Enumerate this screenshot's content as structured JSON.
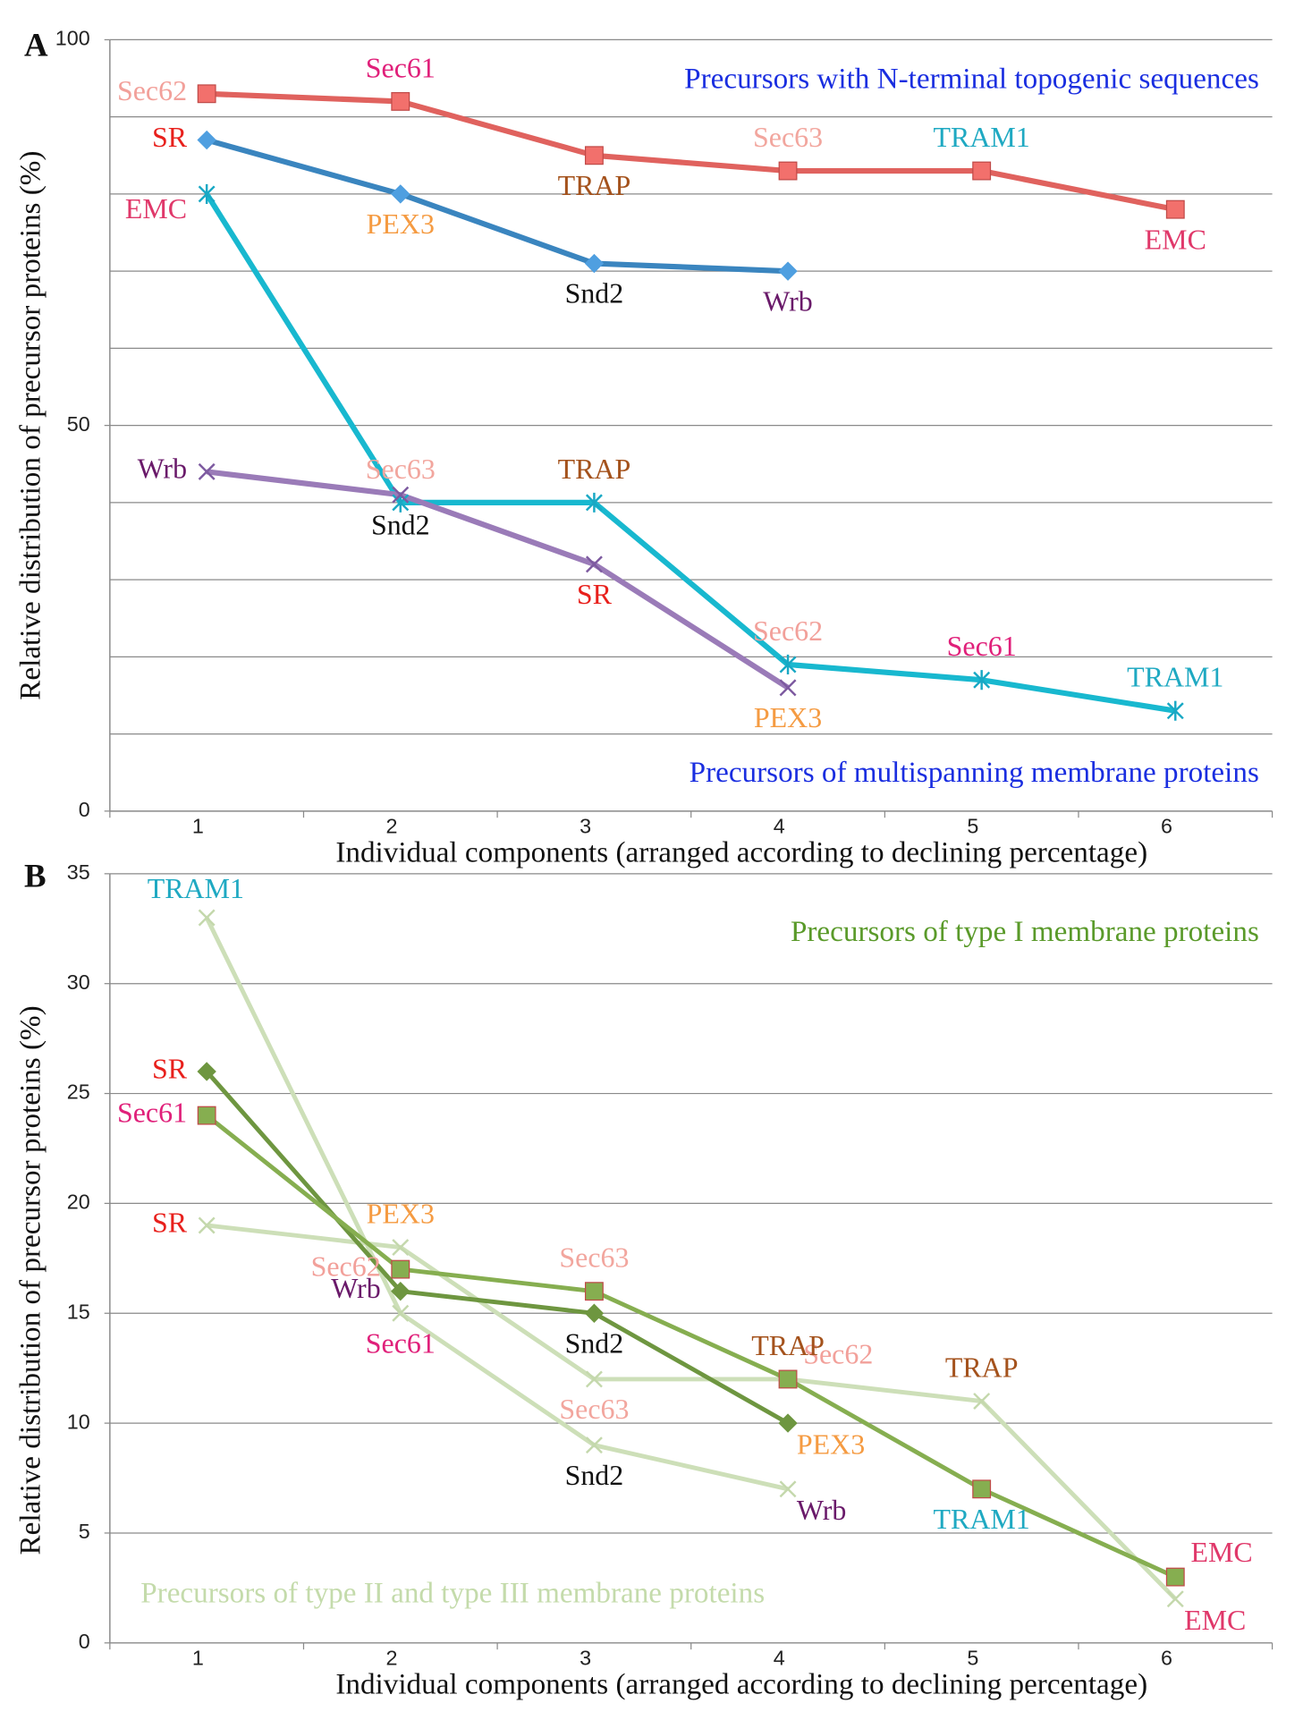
{
  "chart_data": [
    {
      "type": "line",
      "panel_label": "A",
      "ylabel": "Relative distribution of precursor proteins (%)",
      "xlabel": "Individual components (arranged according to declining percentage)",
      "categories": [
        "1",
        "2",
        "3",
        "4",
        "5",
        "6"
      ],
      "ylim": [
        0,
        100
      ],
      "yticks": [
        0,
        50,
        100
      ],
      "ygrid": [
        10,
        20,
        30,
        40,
        50,
        60,
        70,
        80,
        90,
        100
      ],
      "annotations": [
        {
          "text": "Precursors with N-terminal topogenic sequences",
          "color": "#1a2ee0",
          "corner": "top"
        },
        {
          "text": "Precursors of multispanning membrane proteins",
          "color": "#1a2ee0",
          "corner": "bottom"
        }
      ],
      "label_colors": {
        "Sec62": "#f2a09a",
        "Sec61": "#e0207a",
        "TRAP": "#a4521c",
        "Sec63": "#f2a69e",
        "TRAM1": "#1fa9c2",
        "EMC": "#e0386a",
        "SR": "#e8201c",
        "PEX3": "#f59b42",
        "Snd2": "#111111",
        "Wrb": "#6a1a6a"
      },
      "series": [
        {
          "color": "#e0625e",
          "marker": "square",
          "marker_color": "#f2706c",
          "values": [
            93,
            92,
            85,
            83,
            83,
            78
          ],
          "labels": [
            "Sec62",
            "Sec61",
            "TRAP",
            "Sec63",
            "TRAM1",
            "EMC"
          ],
          "label_pos": [
            "left",
            "above",
            "below",
            "above",
            "above",
            "below"
          ]
        },
        {
          "color": "#3a85bf",
          "marker": "diamond",
          "marker_color": "#4f9fe0",
          "values": [
            87,
            80,
            71,
            70,
            null,
            null
          ],
          "labels": [
            "SR",
            "PEX3",
            "Snd2",
            "Wrb",
            null,
            null
          ],
          "label_pos": [
            "left",
            "below",
            "below",
            "below",
            null,
            null
          ]
        },
        {
          "color": "#18b8cf",
          "marker": "asterisk",
          "marker_color": "#18a8c4",
          "values": [
            80,
            40,
            40,
            19,
            17,
            13
          ],
          "labels": [
            "EMC",
            "Sec63",
            "TRAP",
            "Sec62",
            "Sec61",
            "TRAM1"
          ],
          "label_pos": [
            "below-left",
            "above",
            "above",
            "above",
            "above",
            "above"
          ]
        },
        {
          "color": "#9a7bb8",
          "marker": "x",
          "marker_color": "#7d5aa0",
          "values": [
            44,
            41,
            32,
            16,
            null,
            null
          ],
          "labels": [
            "Wrb",
            "Snd2",
            "SR",
            "PEX3",
            null,
            null
          ],
          "label_pos": [
            "left",
            "below",
            "below",
            "below",
            null,
            null
          ]
        }
      ]
    },
    {
      "type": "line",
      "panel_label": "B",
      "ylabel": "Relative distribution of precursor proteins (%)",
      "xlabel": "Individual components (arranged according to declining percentage)",
      "categories": [
        "1",
        "2",
        "3",
        "4",
        "5",
        "6"
      ],
      "ylim": [
        0,
        35
      ],
      "yticks": [
        0,
        5,
        10,
        15,
        20,
        25,
        30,
        35
      ],
      "ygrid": [
        5,
        10,
        15,
        20,
        25,
        30,
        35
      ],
      "annotations": [
        {
          "text": "Precursors of type I membrane proteins",
          "color": "#5a9a2a",
          "corner": "top"
        },
        {
          "text": "Precursors of type II and type III membrane proteins",
          "color": "#c4dbab",
          "corner": "bottom-left"
        }
      ],
      "label_colors": {
        "Sec62": "#f2a09a",
        "Sec61": "#e0207a",
        "TRAP": "#a4521c",
        "Sec63": "#f2a69e",
        "TRAM1": "#1fa9c2",
        "EMC": "#e0386a",
        "SR": "#e8201c",
        "PEX3": "#f59b42",
        "Snd2": "#111111",
        "Wrb": "#6a1a6a"
      },
      "series": [
        {
          "color": "#cddfb8",
          "marker": "x",
          "marker_color": "#c4d8ac",
          "values": [
            33,
            15,
            9,
            7,
            null,
            null
          ],
          "labels": [
            "TRAM1",
            "Sec61",
            "Snd2",
            "Wrb",
            null,
            null
          ],
          "label_pos": [
            "above-left",
            "below",
            "below",
            "below-right",
            null,
            null
          ]
        },
        {
          "color": "#cddfb8",
          "marker": "x",
          "marker_color": "#c4d8ac",
          "values": [
            19,
            18,
            12,
            12,
            11,
            2
          ],
          "labels": [
            "SR",
            "PEX3",
            "Sec63",
            "Sec62",
            "TRAP",
            "EMC"
          ],
          "label_pos": [
            "left",
            "above",
            "below",
            "above-right",
            "above",
            "below-right"
          ]
        },
        {
          "color": "#6e9640",
          "marker": "diamond",
          "marker_color": "#6e9640",
          "values": [
            26,
            16,
            15,
            10,
            null,
            null
          ],
          "labels": [
            "SR",
            "Wrb",
            "Snd2",
            "PEX3",
            null,
            null
          ],
          "label_pos": [
            "left",
            "left",
            "below",
            "below-right",
            null,
            null
          ]
        },
        {
          "color": "#86ae50",
          "marker": "square",
          "marker_color": "#86ae50",
          "values": [
            24,
            17,
            16,
            12,
            7,
            3
          ],
          "labels": [
            "Sec61",
            "Sec62",
            "Sec63",
            "TRAP",
            "TRAM1",
            "EMC"
          ],
          "label_pos": [
            "left",
            "left",
            "above",
            "above",
            "below",
            "above-right"
          ]
        }
      ]
    }
  ]
}
